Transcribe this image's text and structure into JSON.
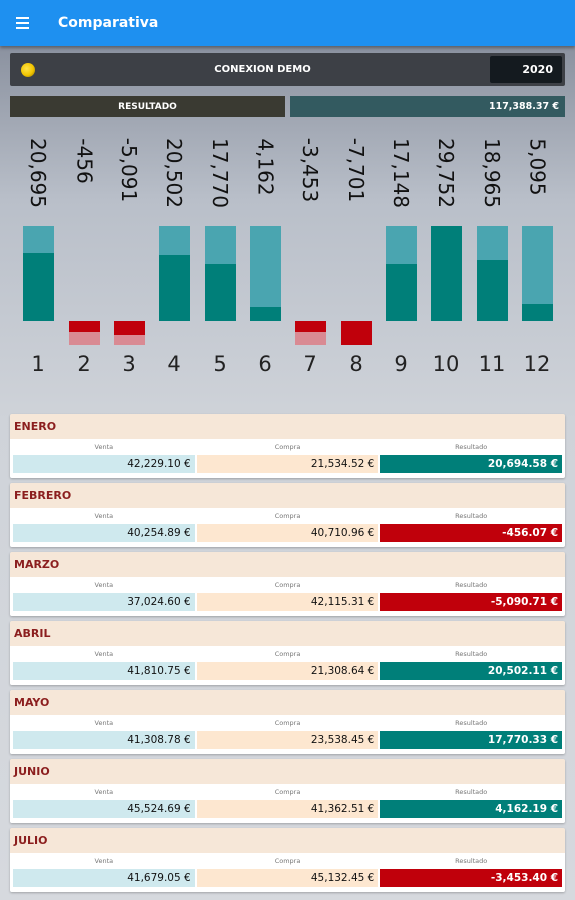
{
  "header": {
    "title": "Comparativa",
    "menu_icon": "hamburger-menu-icon"
  },
  "connection": {
    "name": "CONEXION DEMO",
    "year": "2020",
    "icon": "coin-icon"
  },
  "resultado": {
    "label": "RESULTADO",
    "value": "117,388.37 €"
  },
  "colors": {
    "appbar": "#1e90f0",
    "positive": "#007f79",
    "positive_light": "#4aa5b0",
    "negative": "#c0000b",
    "negative_light": "#d98a93",
    "venta_bg": "#cfe9ee",
    "compra_bg": "#fde7d0",
    "month_head": "#f6e7d8"
  },
  "chart_data": {
    "type": "bar",
    "categories": [
      "1",
      "2",
      "3",
      "4",
      "5",
      "6",
      "7",
      "8",
      "9",
      "10",
      "11",
      "12"
    ],
    "value_labels": [
      "20,695",
      "-456",
      "-5,091",
      "20,502",
      "17,770",
      "4,162",
      "-3,453",
      "-7,701",
      "17,148",
      "29,752",
      "18,965",
      "5,095"
    ],
    "series": [
      {
        "values": [
          20695,
          -456,
          -5091,
          20502,
          17770,
          4162,
          -3453,
          -7701,
          17148,
          29752,
          18965,
          5095
        ]
      }
    ],
    "fill_fraction": [
      0.72,
      0.45,
      0.6,
      0.7,
      0.6,
      0.15,
      0.45,
      1.0,
      0.6,
      1.0,
      0.64,
      0.18
    ],
    "xlabel": "",
    "ylabel": ""
  },
  "months": [
    {
      "name": "ENERO",
      "venta_label": "Venta",
      "compra_label": "Compra",
      "resultado_label": "Resultado",
      "venta": "42,229.10 €",
      "compra": "21,534.52 €",
      "resultado": "20,694.58 €",
      "sign": "pos"
    },
    {
      "name": "FEBRERO",
      "venta_label": "Venta",
      "compra_label": "Compra",
      "resultado_label": "Resultado",
      "venta": "40,254.89 €",
      "compra": "40,710.96 €",
      "resultado": "-456.07 €",
      "sign": "neg"
    },
    {
      "name": "MARZO",
      "venta_label": "Venta",
      "compra_label": "Compra",
      "resultado_label": "Resultado",
      "venta": "37,024.60 €",
      "compra": "42,115.31 €",
      "resultado": "-5,090.71 €",
      "sign": "neg"
    },
    {
      "name": "ABRIL",
      "venta_label": "Venta",
      "compra_label": "Compra",
      "resultado_label": "Resultado",
      "venta": "41,810.75 €",
      "compra": "21,308.64 €",
      "resultado": "20,502.11 €",
      "sign": "pos"
    },
    {
      "name": "MAYO",
      "venta_label": "Venta",
      "compra_label": "Compra",
      "resultado_label": "Resultado",
      "venta": "41,308.78 €",
      "compra": "23,538.45 €",
      "resultado": "17,770.33 €",
      "sign": "pos"
    },
    {
      "name": "JUNIO",
      "venta_label": "Venta",
      "compra_label": "Compra",
      "resultado_label": "Resultado",
      "venta": "45,524.69 €",
      "compra": "41,362.51 €",
      "resultado": "4,162.19 €",
      "sign": "pos"
    },
    {
      "name": "JULIO",
      "venta_label": "Venta",
      "compra_label": "Compra",
      "resultado_label": "Resultado",
      "venta": "41,679.05 €",
      "compra": "45,132.45 €",
      "resultado": "-3,453.40 €",
      "sign": "neg"
    }
  ]
}
